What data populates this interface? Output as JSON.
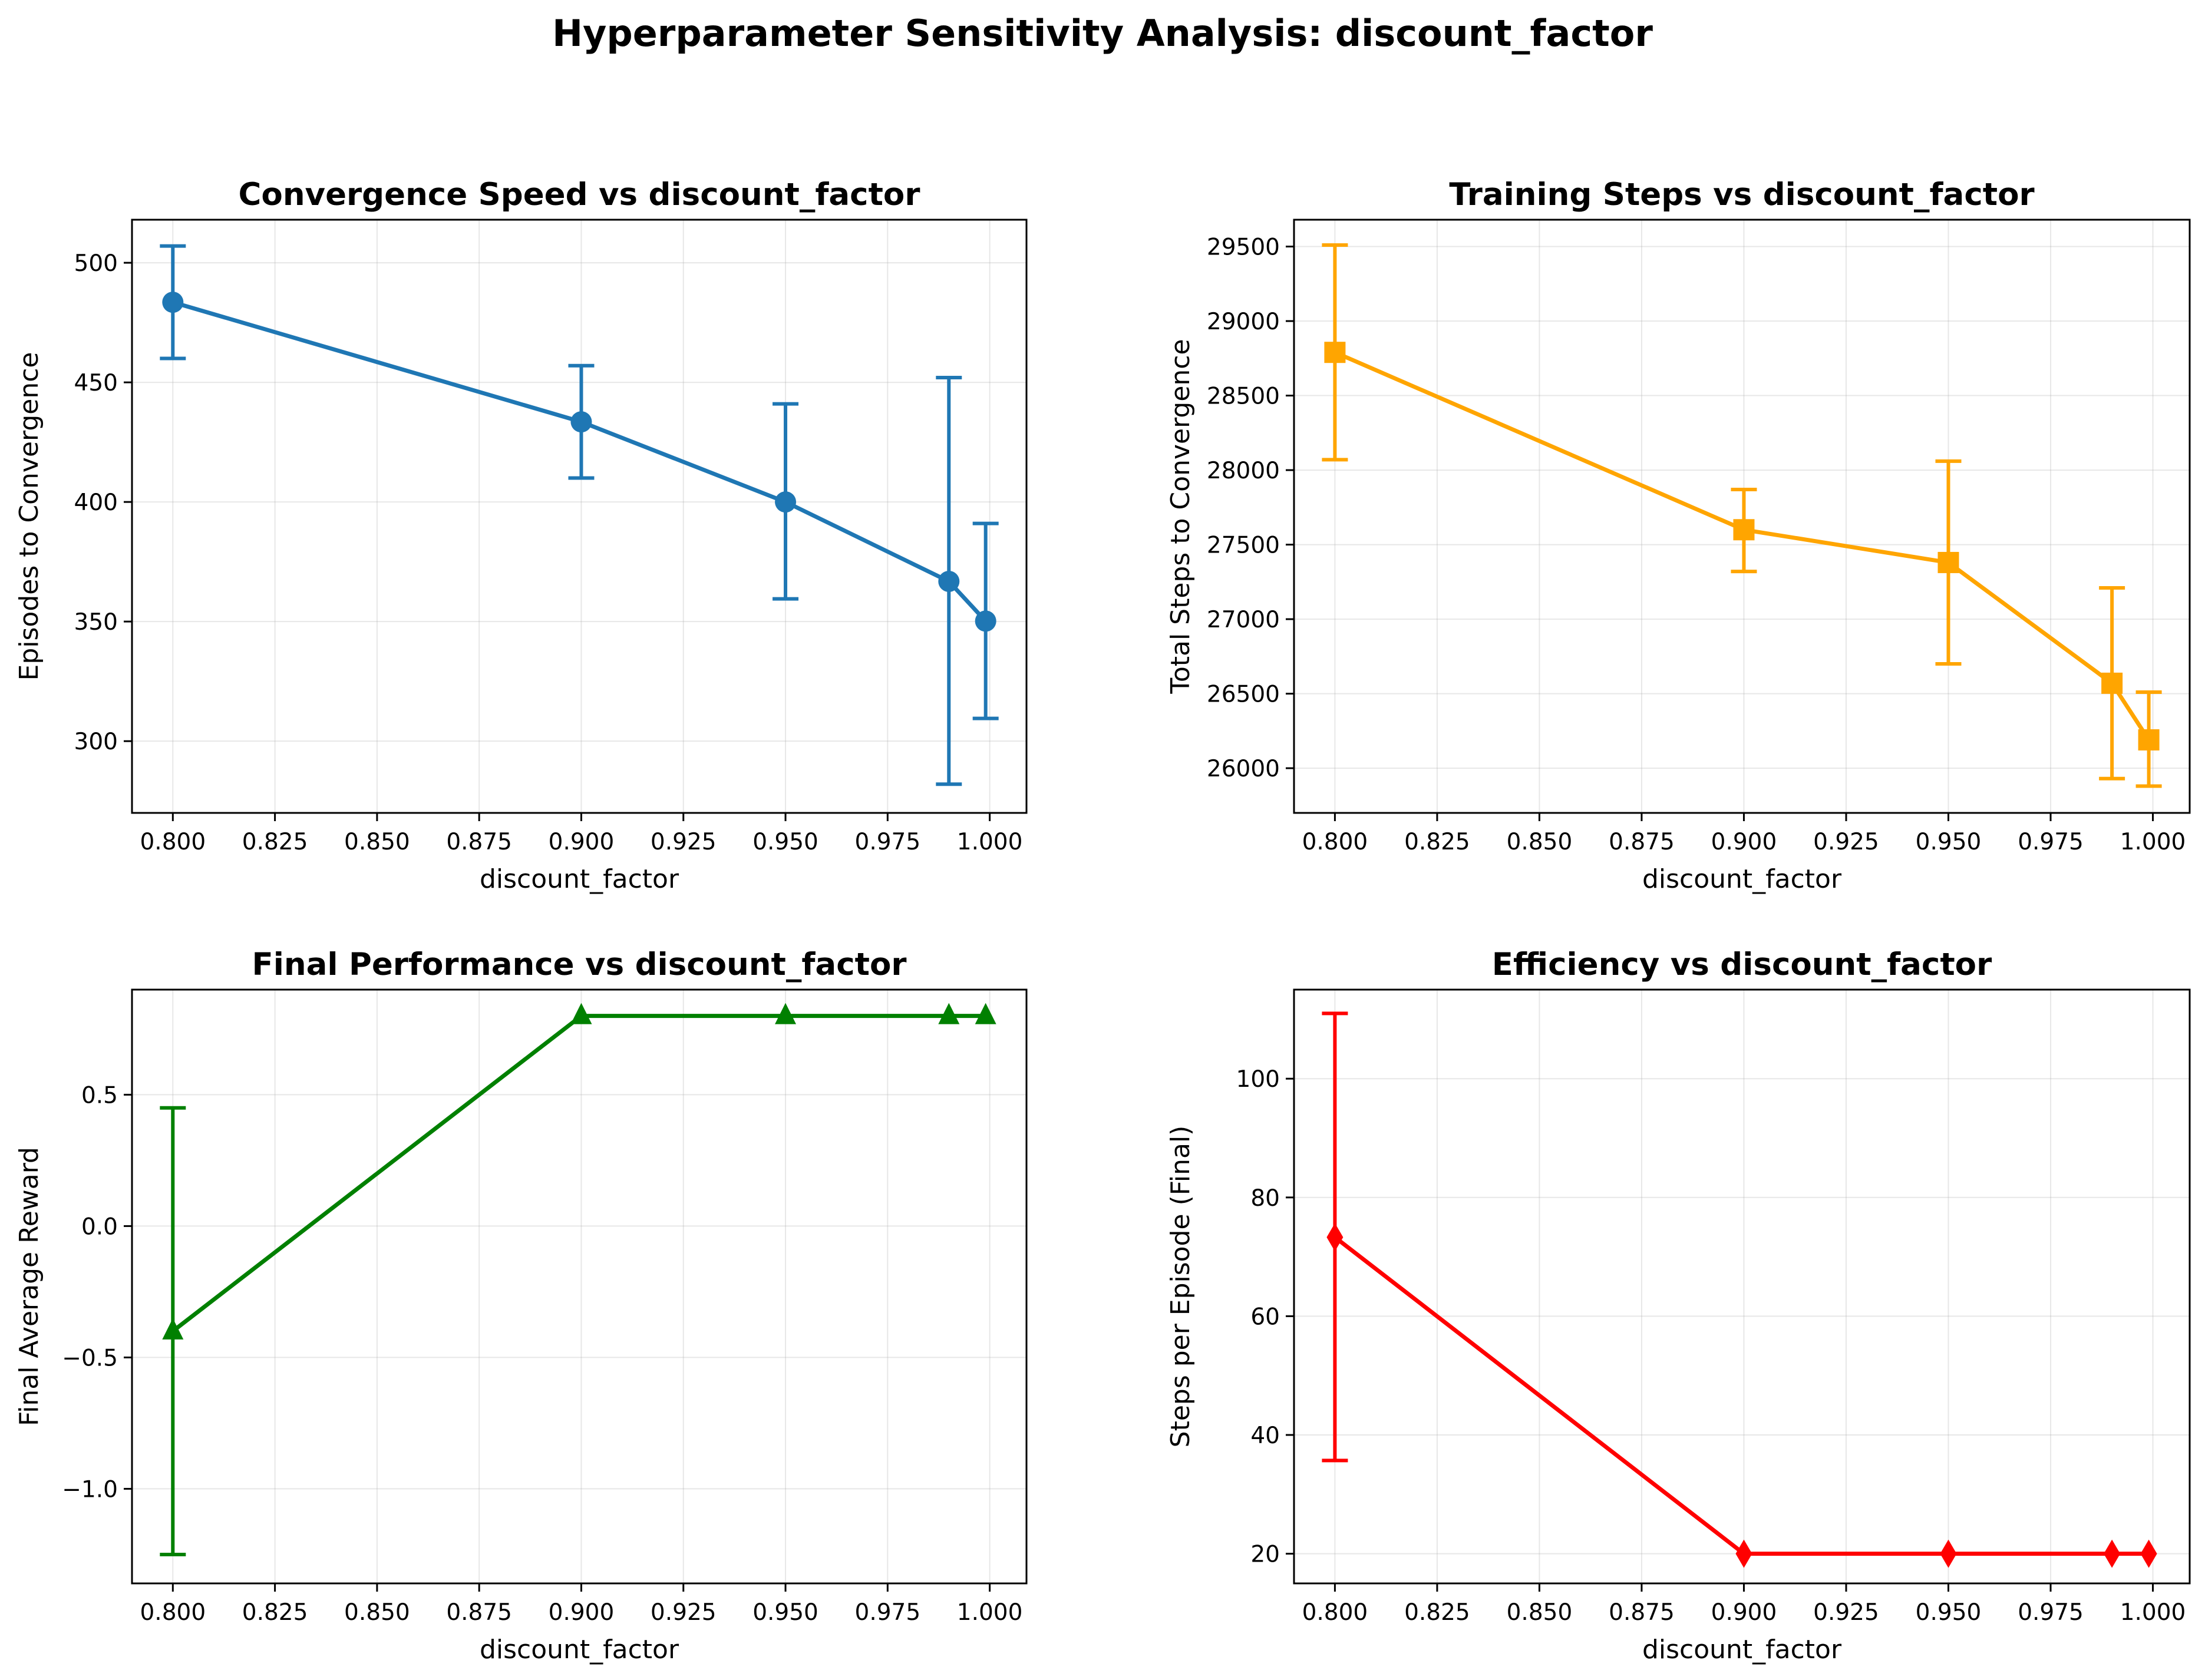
{
  "figure": {
    "title": "Hyperparameter Sensitivity Analysis: discount_factor"
  },
  "chart_data": [
    {
      "type": "line",
      "title": "Convergence Speed vs discount_factor",
      "xlabel": "discount_factor",
      "ylabel": "Episodes to Convergence",
      "xlim": [
        0.79,
        1.009
      ],
      "ylim": [
        270,
        518
      ],
      "xticks": [
        0.8,
        0.825,
        0.85,
        0.875,
        0.9,
        0.925,
        0.95,
        0.975,
        1.0
      ],
      "xtick_labels": [
        "0.800",
        "0.825",
        "0.850",
        "0.875",
        "0.900",
        "0.925",
        "0.950",
        "0.975",
        "1.000"
      ],
      "yticks": [
        300,
        350,
        400,
        450,
        500
      ],
      "ytick_labels": [
        "300",
        "350",
        "400",
        "450",
        "500"
      ],
      "grid": true,
      "marker": "circle",
      "color": "#1f77b4",
      "x": [
        0.8,
        0.9,
        0.95,
        0.99,
        0.999
      ],
      "y": [
        483.5,
        433.5,
        400.0,
        366.8,
        350.2
      ],
      "yerr_low": [
        460.0,
        410.0,
        359.5,
        282.0,
        309.5
      ],
      "yerr_high": [
        507.0,
        457.0,
        441.0,
        452.0,
        391.0
      ]
    },
    {
      "type": "line",
      "title": "Training Steps vs discount_factor",
      "xlabel": "discount_factor",
      "ylabel": "Total Steps to Convergence",
      "xlim": [
        0.79,
        1.009
      ],
      "ylim": [
        25700,
        29680
      ],
      "xticks": [
        0.8,
        0.825,
        0.85,
        0.875,
        0.9,
        0.925,
        0.95,
        0.975,
        1.0
      ],
      "xtick_labels": [
        "0.800",
        "0.825",
        "0.850",
        "0.875",
        "0.900",
        "0.925",
        "0.950",
        "0.975",
        "1.000"
      ],
      "yticks": [
        26000,
        26500,
        27000,
        27500,
        28000,
        28500,
        29000,
        29500
      ],
      "ytick_labels": [
        "26000",
        "26500",
        "27000",
        "27500",
        "28000",
        "28500",
        "29000",
        "29500"
      ],
      "grid": true,
      "marker": "square",
      "color": "#ffa500",
      "x": [
        0.8,
        0.9,
        0.95,
        0.99,
        0.999
      ],
      "y": [
        28790,
        27600,
        27380,
        26570,
        26190
      ],
      "yerr_low": [
        28070,
        27320,
        26700,
        25930,
        25880
      ],
      "yerr_high": [
        29510,
        27870,
        28060,
        27210,
        26510
      ]
    },
    {
      "type": "line",
      "title": "Final Performance vs discount_factor",
      "xlabel": "discount_factor",
      "ylabel": "Final Average Reward",
      "xlim": [
        0.79,
        1.009
      ],
      "ylim": [
        -1.36,
        0.9
      ],
      "xticks": [
        0.8,
        0.825,
        0.85,
        0.875,
        0.9,
        0.925,
        0.95,
        0.975,
        1.0
      ],
      "xtick_labels": [
        "0.800",
        "0.825",
        "0.850",
        "0.875",
        "0.900",
        "0.925",
        "0.950",
        "0.975",
        "1.000"
      ],
      "yticks": [
        -1.0,
        -0.5,
        0.0,
        0.5
      ],
      "ytick_labels": [
        "−1.0",
        "−0.5",
        "0.0",
        "0.5"
      ],
      "grid": true,
      "marker": "triangle",
      "color": "#008000",
      "x": [
        0.8,
        0.9,
        0.95,
        0.99,
        0.999
      ],
      "y": [
        -0.4,
        0.8,
        0.8,
        0.8,
        0.8
      ],
      "yerr_low": [
        -1.25,
        0.8,
        0.8,
        0.8,
        0.8
      ],
      "yerr_high": [
        0.45,
        0.8,
        0.8,
        0.8,
        0.8
      ]
    },
    {
      "type": "line",
      "title": "Efficiency vs discount_factor",
      "xlabel": "discount_factor",
      "ylabel": "Steps per Episode (Final)",
      "xlim": [
        0.79,
        1.009
      ],
      "ylim": [
        15,
        115
      ],
      "xticks": [
        0.8,
        0.825,
        0.85,
        0.875,
        0.9,
        0.925,
        0.95,
        0.975,
        1.0
      ],
      "xtick_labels": [
        "0.800",
        "0.825",
        "0.850",
        "0.875",
        "0.900",
        "0.925",
        "0.950",
        "0.975",
        "1.000"
      ],
      "yticks": [
        20,
        40,
        60,
        80,
        100
      ],
      "ytick_labels": [
        "20",
        "40",
        "60",
        "80",
        "100"
      ],
      "grid": true,
      "marker": "diamond",
      "color": "#ff0000",
      "x": [
        0.8,
        0.9,
        0.95,
        0.99,
        0.999
      ],
      "y": [
        73.3,
        20.0,
        20.0,
        20.0,
        20.0
      ],
      "yerr_low": [
        35.7,
        20.0,
        20.0,
        20.0,
        20.0
      ],
      "yerr_high": [
        111.0,
        20.0,
        20.0,
        20.0,
        20.0
      ]
    }
  ]
}
